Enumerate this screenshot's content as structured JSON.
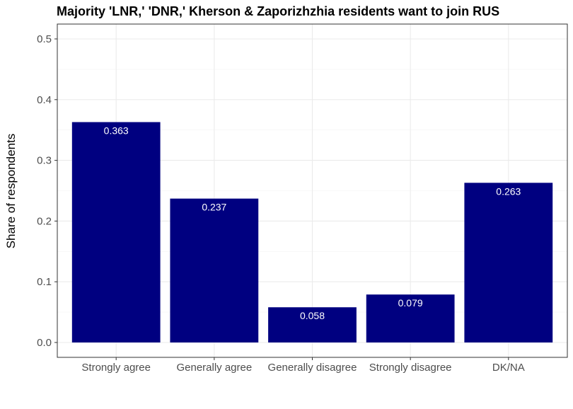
{
  "chart_data": {
    "type": "bar",
    "title": "Majority 'LNR,' 'DNR,' Kherson & Zaporizhzhia residents want to join RUS",
    "xlabel": "",
    "ylabel": "Share of respondents",
    "categories": [
      "Strongly agree",
      "Generally agree",
      "Generally disagree",
      "Strongly disagree",
      "DK/NA"
    ],
    "values": [
      0.363,
      0.237,
      0.058,
      0.079,
      0.263
    ],
    "data_labels": [
      "0.363",
      "0.237",
      "0.058",
      "0.079",
      "0.263"
    ],
    "ylim": [
      0,
      0.5
    ],
    "yticks": [
      0.0,
      0.1,
      0.2,
      0.3,
      0.4,
      0.5
    ],
    "ytick_labels": [
      "0.0",
      "0.1",
      "0.2",
      "0.3",
      "0.4",
      "0.5"
    ],
    "bar_color": "#000080",
    "grid": true,
    "legend": "none"
  }
}
